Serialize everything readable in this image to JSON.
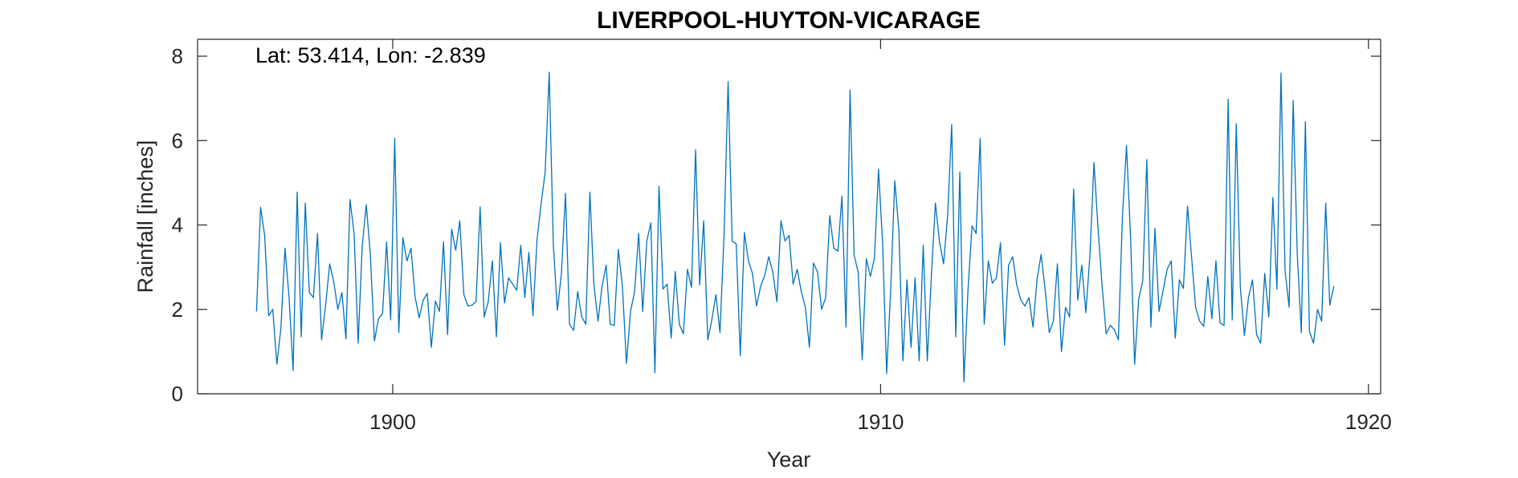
{
  "chart_data": {
    "type": "line",
    "title": "LIVERPOOL-HUYTON-VICARAGE",
    "annotation": "Lat: 53.414, Lon: -2.839",
    "xlabel": "Year",
    "ylabel": "Rainfall [inches]",
    "xlim": [
      1896,
      1920.25
    ],
    "ylim": [
      0,
      8.4
    ],
    "xticks": [
      1900,
      1910,
      1920
    ],
    "yticks": [
      0,
      2,
      4,
      6,
      8
    ],
    "grid": false,
    "line_color": "#0072BD",
    "series": [
      {
        "x_start": 1897.208,
        "x_step": 0.08333,
        "values": [
          1.95,
          4.42,
          3.75,
          1.85,
          2.0,
          0.7,
          1.55,
          3.45,
          2.3,
          0.55,
          4.78,
          1.35,
          4.52,
          2.4,
          2.28,
          3.8,
          1.28,
          2.1,
          3.08,
          2.65,
          2.0,
          2.4,
          1.3,
          4.6,
          3.8,
          1.2,
          3.5,
          4.48,
          3.3,
          1.25,
          1.78,
          1.9,
          3.6,
          1.75,
          6.05,
          1.45,
          3.7,
          3.15,
          3.45,
          2.3,
          1.8,
          2.22,
          2.38,
          1.1,
          2.2,
          1.95,
          3.6,
          1.4,
          3.9,
          3.4,
          4.1,
          2.35,
          2.08,
          2.1,
          2.18,
          4.43,
          1.82,
          2.18,
          3.15,
          1.35,
          3.58,
          2.15,
          2.75,
          2.6,
          2.45,
          3.52,
          2.28,
          3.35,
          1.85,
          3.65,
          4.5,
          5.25,
          7.62,
          3.55,
          1.98,
          2.85,
          4.75,
          1.65,
          1.5,
          2.42,
          1.82,
          1.65,
          4.78,
          2.58,
          1.72,
          2.55,
          3.05,
          1.65,
          1.62,
          3.42,
          2.55,
          0.72,
          1.95,
          2.42,
          3.8,
          1.95,
          3.62,
          4.05,
          0.5,
          4.92,
          2.48,
          2.6,
          1.32,
          2.9,
          1.65,
          1.42,
          2.95,
          2.52,
          5.78,
          2.58,
          4.1,
          1.28,
          1.75,
          2.35,
          1.45,
          3.75,
          7.4,
          3.62,
          3.55,
          0.9,
          3.82,
          3.15,
          2.85,
          2.08,
          2.55,
          2.8,
          3.25,
          2.88,
          2.18,
          4.1,
          3.62,
          3.75,
          2.6,
          2.95,
          2.42,
          2.05,
          1.1,
          3.1,
          2.88,
          2.0,
          2.28,
          4.22,
          3.45,
          3.38,
          4.68,
          1.58,
          7.2,
          3.28,
          2.88,
          0.8,
          3.2,
          2.78,
          3.22,
          5.32,
          3.58,
          0.48,
          2.48,
          5.05,
          3.88,
          0.78,
          2.7,
          1.1,
          2.75,
          0.78,
          3.52,
          0.78,
          2.8,
          4.52,
          3.6,
          3.08,
          4.22,
          6.38,
          1.35,
          5.26,
          0.28,
          2.45,
          3.98,
          3.8,
          6.05,
          1.65,
          3.15,
          2.62,
          2.75,
          3.58,
          1.15,
          3.05,
          3.25,
          2.58,
          2.22,
          2.08,
          2.28,
          1.58,
          2.72,
          3.3,
          2.45,
          1.45,
          1.72,
          3.08,
          1.0,
          2.05,
          1.82,
          4.85,
          2.22,
          3.05,
          1.92,
          3.28,
          5.48,
          3.92,
          2.55,
          1.42,
          1.62,
          1.52,
          1.28,
          4.2,
          5.88,
          3.7,
          0.7,
          2.25,
          2.68,
          5.55,
          1.58,
          3.92,
          1.95,
          2.45,
          2.95,
          3.15,
          1.32,
          2.7,
          2.5,
          4.45,
          3.25,
          2.05,
          1.72,
          1.6,
          2.78,
          1.78,
          3.15,
          1.68,
          1.62,
          6.98,
          1.75,
          6.4,
          2.52,
          1.38,
          2.28,
          2.7,
          1.4,
          1.2,
          2.85,
          1.82,
          4.65,
          2.48,
          7.6,
          2.92,
          2.05,
          6.95,
          3.32,
          1.45,
          6.45,
          1.48,
          1.2,
          2.0,
          1.72,
          4.52,
          2.1,
          2.55
        ]
      }
    ]
  }
}
